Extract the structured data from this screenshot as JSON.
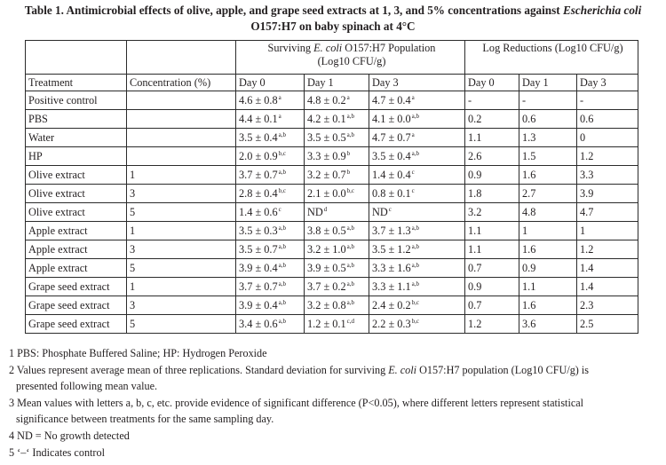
{
  "title": {
    "prefix": "Table 1. Antimicrobial effects of olive, apple, and grape seed extracts at 1, 3, and 5% concentrations against ",
    "organism": "Escherichia coli",
    "line2": "O157:H7 on baby spinach at 4°C"
  },
  "table": {
    "group_surviving_pre": "Surviving ",
    "group_surviving_italic": "E. coli",
    "group_surviving_post": " O157:H7 Population",
    "group_surviving_units": "(Log10 CFU/g)",
    "group_log_reductions": "Log Reductions (Log10 CFU/g)",
    "columns": [
      "Treatment",
      "Concentration (%)",
      "Day 0",
      "Day 1",
      "Day 3",
      "Day 0",
      "Day 1",
      "Day 3"
    ],
    "rows": [
      {
        "treatment": "Positive control",
        "conc": "",
        "s": [
          [
            "4.6 ± 0.8",
            "a"
          ],
          [
            "4.8 ± 0.2",
            "a"
          ],
          [
            "4.7 ± 0.4",
            "a"
          ]
        ],
        "lr": [
          "-",
          "-",
          "-"
        ]
      },
      {
        "treatment": "PBS",
        "conc": "",
        "s": [
          [
            "4.4 ± 0.1",
            "a"
          ],
          [
            "4.2 ± 0.1",
            "a,b"
          ],
          [
            "4.1 ± 0.0",
            "a,b"
          ]
        ],
        "lr": [
          "0.2",
          "0.6",
          "0.6"
        ]
      },
      {
        "treatment": "Water",
        "conc": "",
        "s": [
          [
            "3.5 ± 0.4",
            "a,b"
          ],
          [
            "3.5 ± 0.5",
            "a,b"
          ],
          [
            "4.7 ± 0.7",
            "a"
          ]
        ],
        "lr": [
          "1.1",
          "1.3",
          "0"
        ]
      },
      {
        "treatment": "HP",
        "conc": "",
        "s": [
          [
            "2.0 ± 0.9",
            "b,c"
          ],
          [
            "3.3 ± 0.9",
            "b"
          ],
          [
            "3.5 ± 0.4",
            "a,b"
          ]
        ],
        "lr": [
          "2.6",
          "1.5",
          "1.2"
        ]
      },
      {
        "treatment": "Olive extract",
        "conc": "1",
        "s": [
          [
            "3.7 ± 0.7",
            "a,b"
          ],
          [
            "3.2 ± 0.7",
            "b"
          ],
          [
            "1.4 ± 0.4",
            "c"
          ]
        ],
        "lr": [
          "0.9",
          "1.6",
          "3.3"
        ]
      },
      {
        "treatment": "Olive extract",
        "conc": "3",
        "s": [
          [
            "2.8 ± 0.4",
            "b,c"
          ],
          [
            "2.1 ± 0.0",
            "b,c"
          ],
          [
            "0.8 ± 0.1",
            "c"
          ]
        ],
        "lr": [
          "1.8",
          "2.7",
          "3.9"
        ]
      },
      {
        "treatment": "Olive extract",
        "conc": "5",
        "s": [
          [
            "1.4 ± 0.6",
            "c"
          ],
          [
            "ND",
            "d"
          ],
          [
            "ND",
            "c"
          ]
        ],
        "lr": [
          "3.2",
          "4.8",
          "4.7"
        ]
      },
      {
        "treatment": "Apple extract",
        "conc": "1",
        "s": [
          [
            "3.5 ± 0.3",
            "a,b"
          ],
          [
            "3.8 ± 0.5",
            "a,b"
          ],
          [
            "3.7 ± 1.3",
            "a,b"
          ]
        ],
        "lr": [
          "1.1",
          "1",
          "1"
        ]
      },
      {
        "treatment": "Apple extract",
        "conc": "3",
        "s": [
          [
            "3.5 ± 0.7",
            "a,b"
          ],
          [
            "3.2 ± 1.0",
            "a,b"
          ],
          [
            "3.5 ± 1.2",
            "a,b"
          ]
        ],
        "lr": [
          "1.1",
          "1.6",
          "1.2"
        ]
      },
      {
        "treatment": "Apple extract",
        "conc": "5",
        "s": [
          [
            "3.9 ± 0.4",
            "a,b"
          ],
          [
            "3.9 ± 0.5",
            "a,b"
          ],
          [
            "3.3 ± 1.6",
            "a,b"
          ]
        ],
        "lr": [
          "0.7",
          "0.9",
          "1.4"
        ]
      },
      {
        "treatment": "Grape seed extract",
        "conc": "1",
        "s": [
          [
            "3.7 ± 0.7",
            "a,b"
          ],
          [
            "3.7 ± 0.2",
            "a,b"
          ],
          [
            "3.3 ± 1.1",
            "a,b"
          ]
        ],
        "lr": [
          "0.9",
          "1.1",
          "1.4"
        ]
      },
      {
        "treatment": "Grape seed extract",
        "conc": "3",
        "s": [
          [
            "3.9 ± 0.4",
            "a,b"
          ],
          [
            "3.2 ± 0.8",
            "a,b"
          ],
          [
            "2.4 ± 0.2",
            "b,c"
          ]
        ],
        "lr": [
          "0.7",
          "1.6",
          "2.3"
        ]
      },
      {
        "treatment": "Grape seed extract",
        "conc": "5",
        "s": [
          [
            "3.4 ± 0.6",
            "a,b"
          ],
          [
            "1.2 ± 0.1",
            "c,d"
          ],
          [
            "2.2 ± 0.3",
            "b,c"
          ]
        ],
        "lr": [
          "1.2",
          "3.6",
          "2.5"
        ]
      }
    ]
  },
  "notes": {
    "n1": "1 PBS: Phosphate Buffered Saline; HP: Hydrogen Peroxide",
    "n2_pre": "2 Values represent average mean of three replications. Standard deviation for surviving ",
    "n2_italic": "E. coli",
    "n2_post": " O157:H7 population (Log10 CFU/g) is",
    "n2_line2": "presented following mean value.",
    "n3_line1": "3 Mean values with letters a, b, c, etc. provide evidence of significant difference (P<0.05), where different letters represent statistical",
    "n3_line2": "significance between treatments for the same sampling day.",
    "n4": "4 ND = No growth detected",
    "n5": "5 ‘–‘ Indicates control"
  }
}
